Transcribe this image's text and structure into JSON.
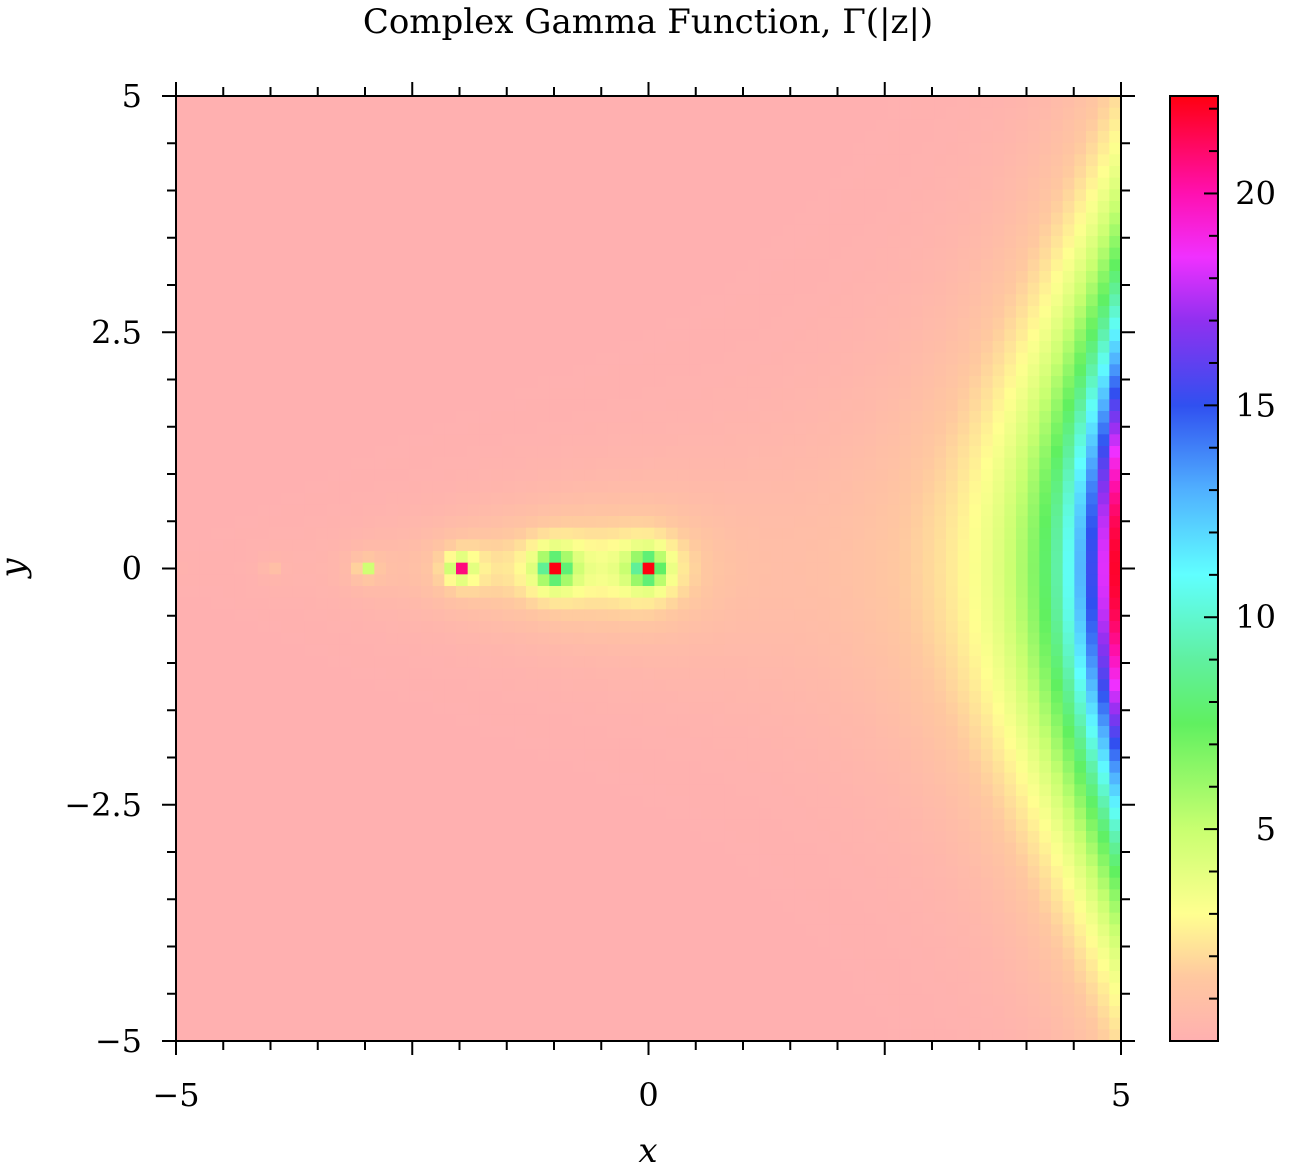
{
  "chart_data": {
    "type": "heatmap",
    "title": "Complex Gamma Function, Γ(|z|)",
    "xlabel": "x",
    "ylabel": "y",
    "xlim": [
      -5,
      5
    ],
    "ylim": [
      -5,
      5
    ],
    "x_ticks": [
      {
        "value": -5,
        "label": "−5"
      },
      {
        "value": 0,
        "label": "0"
      },
      {
        "value": 5,
        "label": "5"
      }
    ],
    "y_ticks": [
      {
        "value": 5,
        "label": "5"
      },
      {
        "value": 2.5,
        "label": "2.5"
      },
      {
        "value": 0,
        "label": "0"
      },
      {
        "value": -2.5,
        "label": "−2.5"
      },
      {
        "value": -5,
        "label": "−5"
      }
    ],
    "colorbar": {
      "range": [
        0,
        22.3
      ],
      "ticks": [
        {
          "value": 5,
          "label": "5"
        },
        {
          "value": 10,
          "label": "10"
        },
        {
          "value": 15,
          "label": "15"
        },
        {
          "value": 20,
          "label": "20"
        }
      ],
      "colormap": [
        {
          "value": 0,
          "color": "#ffb0b0"
        },
        {
          "value": 1.5,
          "color": "#ffc8a0"
        },
        {
          "value": 3,
          "color": "#ffff90"
        },
        {
          "value": 5,
          "color": "#c8ff70"
        },
        {
          "value": 7.5,
          "color": "#60f060"
        },
        {
          "value": 9,
          "color": "#60f0a0"
        },
        {
          "value": 11,
          "color": "#60ffff"
        },
        {
          "value": 13,
          "color": "#50b0ff"
        },
        {
          "value": 15,
          "color": "#3050f0"
        },
        {
          "value": 17,
          "color": "#9030f0"
        },
        {
          "value": 18.5,
          "color": "#f030ff"
        },
        {
          "value": 20,
          "color": "#ff10b0"
        },
        {
          "value": 22.3,
          "color": "#ff0010"
        }
      ]
    },
    "grid": false,
    "grid_size": [
      81,
      81
    ],
    "value": "|Γ(x+iy)|",
    "clip_max": 22.3
  }
}
